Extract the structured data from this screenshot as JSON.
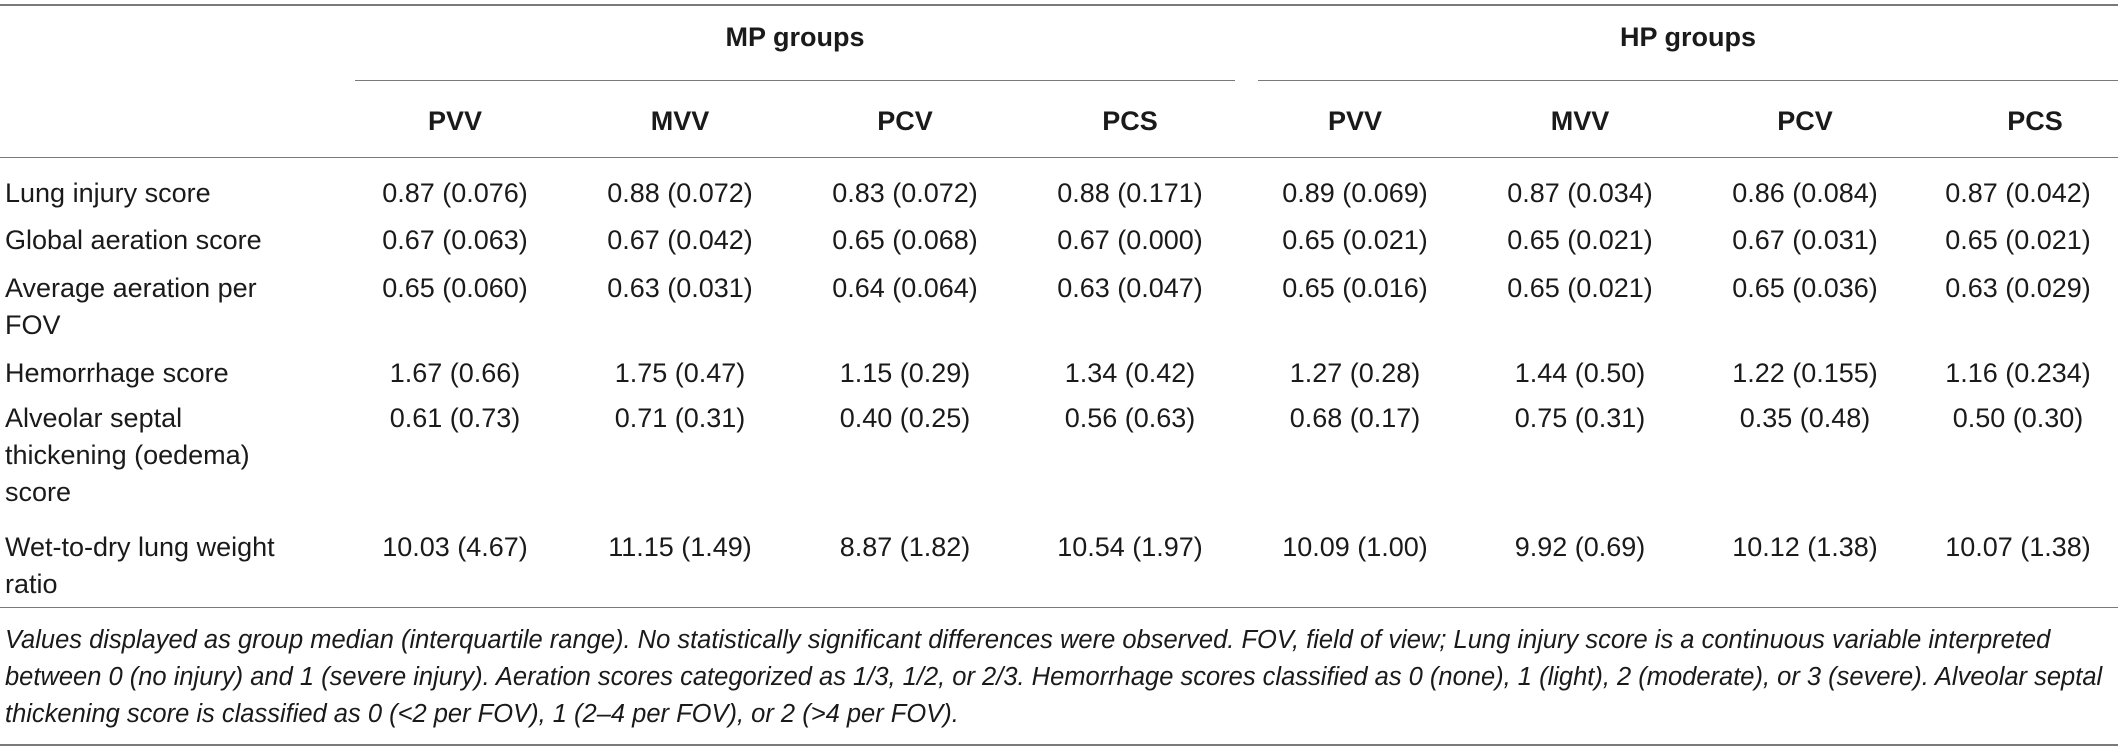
{
  "table": {
    "group_headers": [
      "MP groups",
      "HP groups"
    ],
    "columns": [
      "PVV",
      "MVV",
      "PCV",
      "PCS",
      "PVV",
      "MVV",
      "PCV",
      "PCS"
    ],
    "rows": [
      {
        "label": "Lung injury score",
        "values": [
          "0.87 (0.076)",
          "0.88 (0.072)",
          "0.83 (0.072)",
          "0.88 (0.171)",
          "0.89 (0.069)",
          "0.87 (0.034)",
          "0.86 (0.084)",
          "0.87 (0.042)"
        ]
      },
      {
        "label": "Global aeration score",
        "values": [
          "0.67 (0.063)",
          "0.67 (0.042)",
          "0.65 (0.068)",
          "0.67 (0.000)",
          "0.65 (0.021)",
          "0.65 (0.021)",
          "0.67 (0.031)",
          "0.65 (0.021)"
        ]
      },
      {
        "label": "Average aeration per FOV",
        "values": [
          "0.65 (0.060)",
          "0.63 (0.031)",
          "0.64 (0.064)",
          "0.63 (0.047)",
          "0.65 (0.016)",
          "0.65 (0.021)",
          "0.65 (0.036)",
          "0.63 (0.029)"
        ]
      },
      {
        "label": "Hemorrhage score",
        "values": [
          "1.67 (0.66)",
          "1.75 (0.47)",
          "1.15 (0.29)",
          "1.34 (0.42)",
          "1.27 (0.28)",
          "1.44 (0.50)",
          "1.22 (0.155)",
          "1.16 (0.234)"
        ]
      },
      {
        "label": "Alveolar septal thickening (oedema) score",
        "values": [
          "0.61 (0.73)",
          "0.71 (0.31)",
          "0.40 (0.25)",
          "0.56 (0.63)",
          "0.68 (0.17)",
          "0.75 (0.31)",
          "0.35 (0.48)",
          "0.50 (0.30)"
        ]
      },
      {
        "label": "Wet-to-dry lung weight ratio",
        "values": [
          "10.03 (4.67)",
          "11.15 (1.49)",
          "8.87 (1.82)",
          "10.54 (1.97)",
          "10.09 (1.00)",
          "9.92 (0.69)",
          "10.12 (1.38)",
          "10.07 (1.38)"
        ]
      }
    ],
    "footnote": "Values displayed as group median (interquartile range). No statistically significant differences were observed. FOV, field of view; Lung injury score is a continuous variable interpreted between 0 (no injury) and 1 (severe injury). Aeration scores categorized as 1/3, 1/2, or 2/3. Hemorrhage scores classified as 0 (none), 1 (light), 2 (moderate), or 3 (severe). Alveolar septal thickening score is classified as 0 (<2 per FOV), 1 (2–4 per FOV), or 2 (>4 per FOV)."
  }
}
